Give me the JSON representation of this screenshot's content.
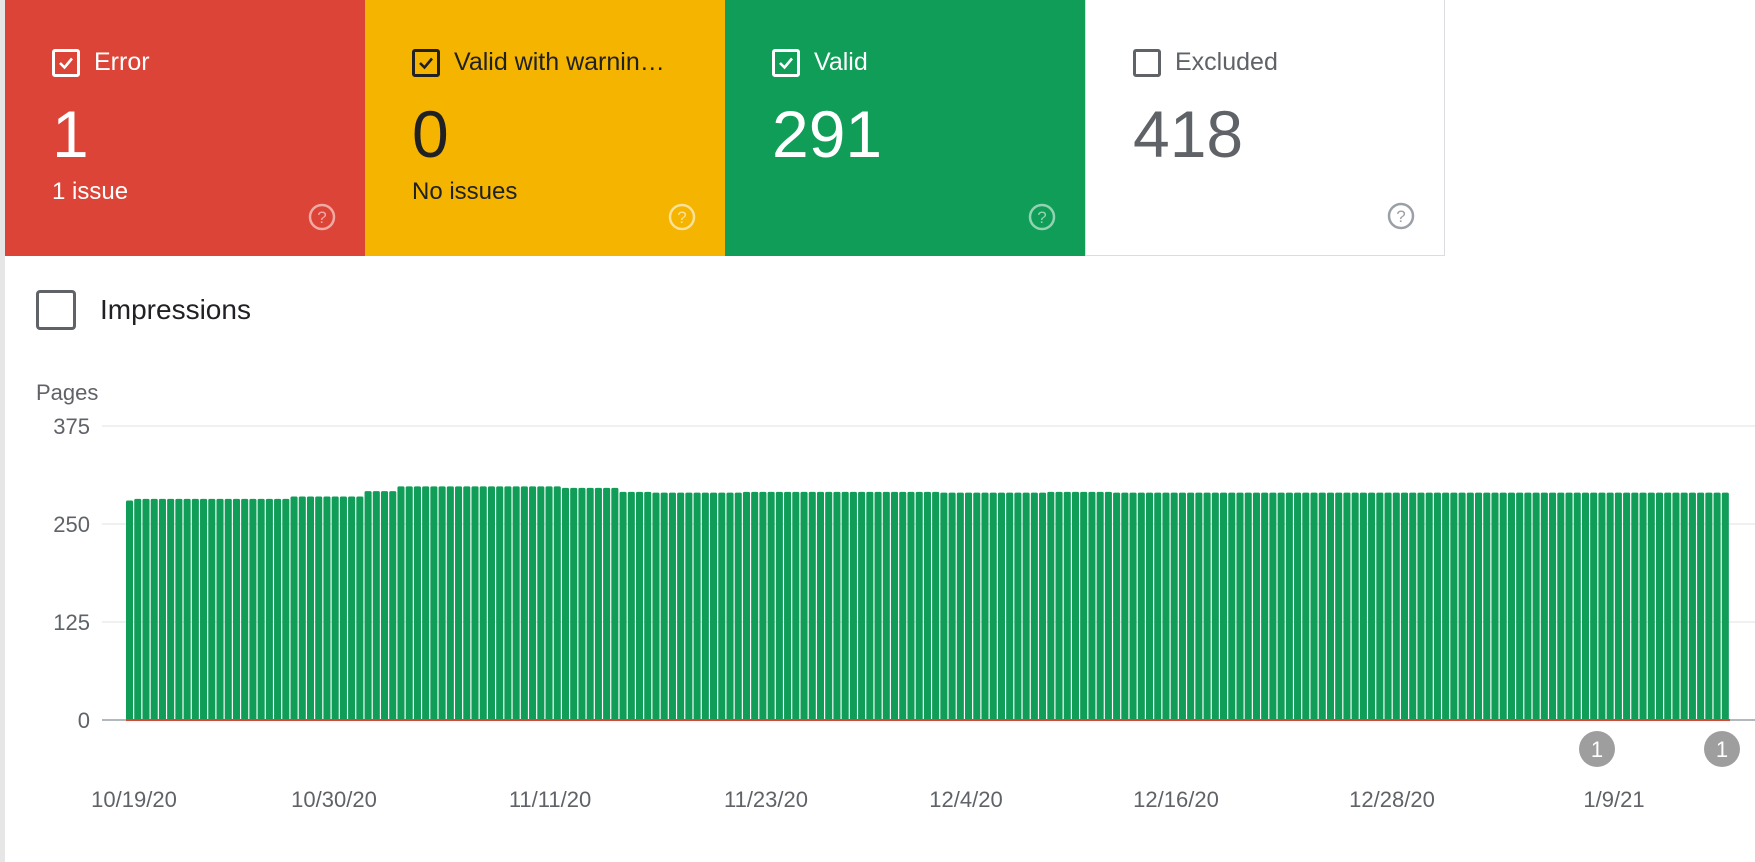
{
  "cards": [
    {
      "label": "Error",
      "count": "1",
      "sub": "1 issue",
      "checked": true,
      "color": "#db4437"
    },
    {
      "label": "Valid with warnin…",
      "count": "0",
      "sub": "No issues",
      "checked": true,
      "color": "#f4b400"
    },
    {
      "label": "Valid",
      "count": "291",
      "sub": "",
      "checked": true,
      "color": "#0f9d58"
    },
    {
      "label": "Excluded",
      "count": "418",
      "sub": "",
      "checked": false,
      "color": "#ffffff"
    }
  ],
  "impressions": {
    "label": "Impressions",
    "checked": false
  },
  "chart_data": {
    "type": "bar",
    "ylabel": "Pages",
    "ylim": [
      0,
      375
    ],
    "yticks": [
      0,
      125,
      250,
      375
    ],
    "grid": true,
    "x_tick_labels": [
      "10/19/20",
      "10/30/20",
      "11/11/20",
      "11/23/20",
      "12/4/20",
      "12/16/20",
      "12/28/20",
      "1/9/21"
    ],
    "start_date": "10/19/20",
    "series": [
      {
        "color": "#0f9d58",
        "values": [
          280,
          282,
          282,
          282,
          282,
          282,
          282,
          282,
          282,
          282,
          282,
          282,
          282,
          282,
          282,
          282,
          282,
          282,
          282,
          282,
          285,
          285,
          285,
          285,
          285,
          285,
          285,
          285,
          285,
          292,
          292,
          292,
          292,
          298,
          298,
          298,
          298,
          298,
          298,
          298,
          298,
          298,
          298,
          298,
          298,
          298,
          298,
          298,
          298,
          298,
          298,
          298,
          298,
          296,
          296,
          296,
          296,
          296,
          296,
          296,
          291,
          291,
          291,
          291,
          290,
          290,
          290,
          290,
          290,
          290,
          290,
          290,
          290,
          290,
          290,
          291,
          291,
          291,
          291,
          291,
          291,
          291,
          291,
          291,
          291,
          291,
          291,
          291,
          291,
          291,
          291,
          291,
          291,
          291,
          291,
          291,
          291,
          291,
          291,
          290,
          290,
          290,
          290,
          290,
          290,
          290,
          290,
          290,
          290,
          290,
          290,
          290,
          291,
          291,
          291,
          291,
          291,
          291,
          291,
          291,
          290,
          290,
          290,
          290,
          290,
          290,
          290,
          290,
          290,
          290,
          290,
          290,
          290,
          290,
          290,
          290,
          290,
          290,
          290,
          290,
          290,
          290,
          290,
          290,
          290,
          290,
          290,
          290,
          290,
          290,
          290,
          290,
          290,
          290,
          290,
          290,
          290,
          290,
          290,
          290,
          290,
          290,
          290,
          290,
          290,
          290,
          290,
          290,
          290,
          290,
          290,
          290,
          290,
          290,
          290,
          290,
          290,
          290,
          290,
          290,
          290,
          290,
          290,
          290,
          290,
          290,
          290,
          290,
          290,
          290,
          290,
          290,
          290,
          290,
          290
        ]
      },
      {
        "color": "#db4437",
        "values": [
          1
        ]
      }
    ],
    "annotations": [
      "1",
      "1"
    ]
  }
}
